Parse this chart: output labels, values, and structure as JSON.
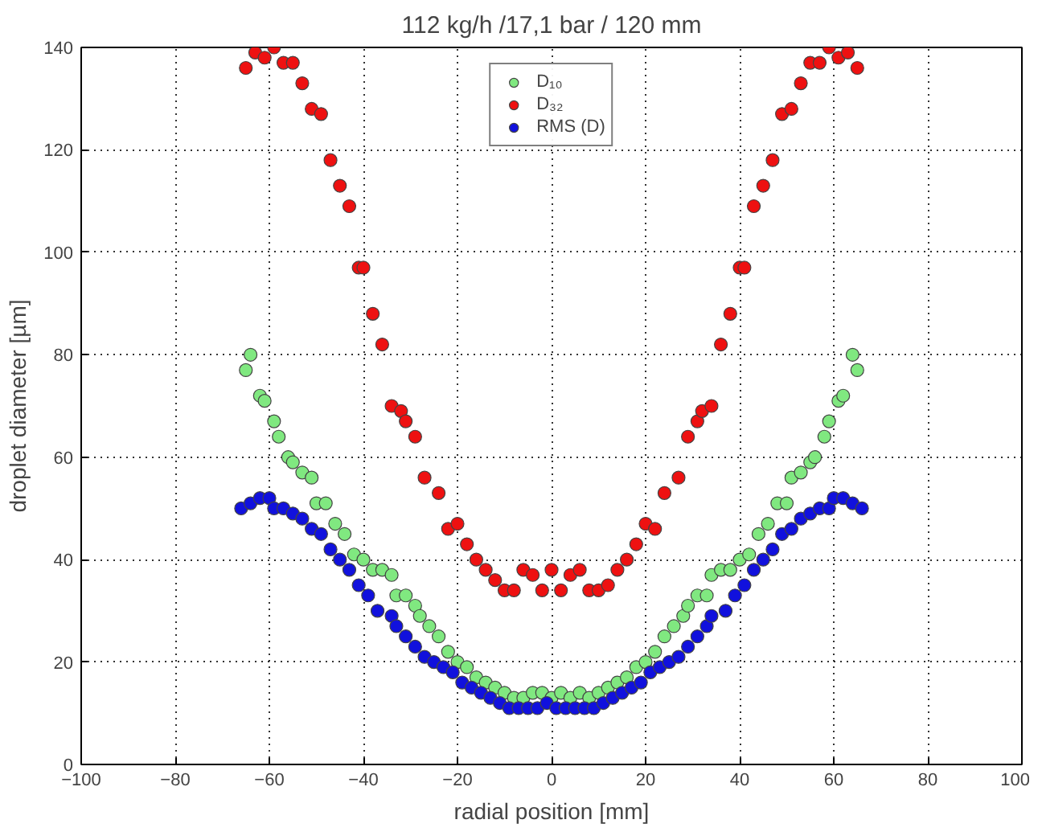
{
  "chart_data": {
    "type": "scatter",
    "title": "112 kg/h /17,1 bar / 120 mm",
    "xlabel": "radial position [mm]",
    "ylabel": "droplet diameter [µm]",
    "xlim": [
      -100,
      100
    ],
    "ylim": [
      0,
      140
    ],
    "xticks": [
      -100,
      -80,
      -60,
      -40,
      -20,
      0,
      20,
      40,
      60,
      80,
      100
    ],
    "yticks": [
      0,
      20,
      40,
      60,
      80,
      100,
      120,
      140
    ],
    "grid": true,
    "legend": "top",
    "marker": "circle",
    "series": [
      {
        "name": "D₁₀",
        "color": "#80e880",
        "x": [
          -65,
          -64,
          -62,
          -61,
          -59,
          -58,
          -56,
          -55,
          -53,
          -51,
          -50,
          -48,
          -46,
          -44,
          -42,
          -40,
          -38,
          -36,
          -34,
          -33,
          -31,
          -29,
          -28,
          -26,
          -24,
          -22,
          -20,
          -18,
          -16,
          -14,
          -12,
          -10,
          -8,
          -6,
          -4,
          -2,
          0,
          2,
          4,
          6,
          8,
          10,
          12,
          14,
          16,
          18,
          20,
          22,
          24,
          26,
          28,
          29,
          31,
          33,
          34,
          36,
          38,
          40,
          42,
          44,
          46,
          48,
          50,
          51,
          53,
          55,
          56,
          58,
          59,
          61,
          62,
          64,
          65
        ],
        "values": [
          77,
          80,
          72,
          71,
          67,
          64,
          60,
          59,
          57,
          56,
          51,
          51,
          47,
          45,
          41,
          40,
          38,
          38,
          37,
          33,
          33,
          31,
          29,
          27,
          25,
          22,
          20,
          19,
          17,
          16,
          15,
          14,
          13,
          13,
          14,
          14,
          13,
          14,
          13,
          14,
          13,
          14,
          15,
          16,
          17,
          19,
          20,
          22,
          25,
          27,
          29,
          31,
          33,
          33,
          37,
          38,
          38,
          40,
          41,
          45,
          47,
          51,
          51,
          56,
          57,
          59,
          60,
          64,
          67,
          71,
          72,
          80,
          77
        ]
      },
      {
        "name": "D₃₂",
        "color": "#ee1111",
        "x": [
          -65,
          -63,
          -61,
          -59,
          -57,
          -55,
          -53,
          -51,
          -49,
          -47,
          -45,
          -43,
          -41,
          -40,
          -38,
          -36,
          -34,
          -32,
          -31,
          -29,
          -27,
          -24,
          -22,
          -20,
          -18,
          -16,
          -14,
          -12,
          -10,
          -8,
          -6,
          -4,
          -2,
          0,
          2,
          4,
          6,
          8,
          10,
          12,
          14,
          16,
          18,
          20,
          22,
          24,
          27,
          29,
          31,
          32,
          34,
          36,
          38,
          40,
          41,
          43,
          45,
          47,
          49,
          51,
          53,
          55,
          57,
          59,
          61,
          63,
          65
        ],
        "values": [
          136,
          139,
          138,
          140,
          137,
          137,
          133,
          128,
          127,
          118,
          113,
          109,
          97,
          97,
          88,
          82,
          70,
          69,
          67,
          64,
          56,
          53,
          46,
          47,
          43,
          40,
          38,
          36,
          34,
          34,
          38,
          37,
          34,
          38,
          34,
          37,
          38,
          34,
          34,
          35,
          38,
          40,
          43,
          47,
          46,
          53,
          56,
          64,
          67,
          69,
          70,
          82,
          88,
          97,
          97,
          109,
          113,
          118,
          127,
          128,
          133,
          137,
          137,
          140,
          138,
          139,
          136
        ]
      },
      {
        "name": "RMS (D)",
        "color": "#1111dd",
        "x": [
          -66,
          -64,
          -62,
          -60,
          -59,
          -57,
          -55,
          -53,
          -51,
          -49,
          -47,
          -45,
          -43,
          -41,
          -39,
          -37,
          -34,
          -33,
          -31,
          -29,
          -27,
          -25,
          -23,
          -21,
          -19,
          -17,
          -15,
          -13,
          -11,
          -9,
          -7,
          -5,
          -3,
          -1,
          1,
          3,
          5,
          7,
          9,
          11,
          13,
          15,
          17,
          19,
          21,
          23,
          25,
          27,
          29,
          31,
          33,
          34,
          37,
          39,
          41,
          43,
          45,
          47,
          49,
          51,
          53,
          55,
          57,
          59,
          60,
          62,
          64,
          66
        ],
        "values": [
          50,
          51,
          52,
          52,
          50,
          50,
          49,
          48,
          46,
          45,
          42,
          40,
          38,
          35,
          33,
          30,
          29,
          27,
          25,
          23,
          21,
          20,
          19,
          18,
          16,
          15,
          14,
          13,
          12,
          11,
          11,
          11,
          11,
          12,
          11,
          11,
          11,
          11,
          11,
          12,
          13,
          14,
          15,
          16,
          18,
          19,
          20,
          21,
          23,
          25,
          27,
          29,
          30,
          33,
          35,
          38,
          40,
          42,
          45,
          46,
          48,
          49,
          50,
          50,
          52,
          52,
          51,
          50
        ]
      }
    ]
  }
}
